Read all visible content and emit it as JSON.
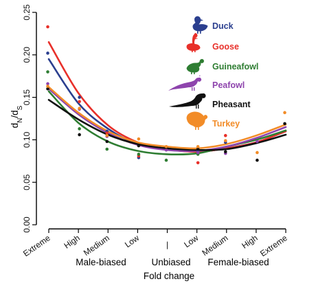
{
  "chart_data": {
    "type": "line",
    "xlabel": "Fold change",
    "ylabel": "dN/dS",
    "ylabel_parts": {
      "main1": "d",
      "sub1": "N",
      "slash": "/",
      "main2": "d",
      "sub2": "S"
    },
    "ylim": [
      0.0,
      0.25
    ],
    "yticks": [
      "0.00",
      "0.05",
      "0.10",
      "0.15",
      "0.20",
      "0.25"
    ],
    "yticks_values": [
      0.0,
      0.05,
      0.1,
      0.15,
      0.2,
      0.25
    ],
    "categories": [
      "Extreme",
      "High",
      "Medium",
      "Low",
      "|",
      "Low",
      "Medium",
      "High",
      "Extreme"
    ],
    "groups": [
      "Male-biased",
      "Unbiased",
      "Female-biased"
    ],
    "legend_position": "top-right",
    "series": [
      {
        "name": "Duck",
        "color": "#2b3f8f",
        "icon": "duck-icon",
        "points": [
          0.202,
          0.15,
          0.11,
          0.079,
          null,
          0.087,
          0.097,
          null,
          null
        ],
        "curve": [
          0.195,
          0.143,
          0.113,
          0.095,
          0.089,
          0.086,
          0.09,
          0.097,
          0.11
        ]
      },
      {
        "name": "Goose",
        "color": "#e8302a",
        "icon": "goose-icon",
        "points": [
          0.233,
          0.145,
          0.108,
          0.081,
          null,
          0.073,
          0.105,
          null,
          null
        ],
        "curve": [
          0.215,
          0.155,
          0.117,
          0.097,
          0.089,
          0.086,
          0.09,
          0.097,
          0.11
        ]
      },
      {
        "name": "Guineafowl",
        "color": "#2e7d32",
        "icon": "guineafowl-icon",
        "points": [
          0.18,
          0.113,
          0.089,
          0.083,
          0.076,
          0.083,
          null,
          null,
          null
        ],
        "curve": [
          0.157,
          0.12,
          0.098,
          0.087,
          0.083,
          0.084,
          0.092,
          0.1,
          0.111
        ]
      },
      {
        "name": "Peafowl",
        "color": "#8e44ad",
        "icon": "peafowl-icon",
        "points": [
          0.166,
          0.136,
          0.104,
          null,
          0.088,
          0.085,
          0.084,
          0.098,
          null
        ],
        "curve": [
          0.16,
          0.13,
          0.108,
          0.094,
          0.088,
          0.087,
          0.092,
          0.102,
          0.115
        ]
      },
      {
        "name": "Pheasant",
        "color": "#111111",
        "icon": "pheasant-icon",
        "points": [
          0.16,
          0.106,
          0.098,
          0.093,
          0.091,
          0.089,
          0.086,
          0.076,
          0.119
        ],
        "curve": [
          0.147,
          0.124,
          0.106,
          0.095,
          0.09,
          0.088,
          0.089,
          0.096,
          0.106
        ]
      },
      {
        "name": "Turkey",
        "color": "#f28c28",
        "icon": "turkey-icon",
        "points": [
          0.163,
          0.137,
          0.105,
          0.101,
          0.092,
          0.092,
          0.099,
          0.085,
          0.132
        ],
        "curve": [
          0.162,
          0.132,
          0.11,
          0.097,
          0.092,
          0.09,
          0.095,
          0.105,
          0.118
        ]
      }
    ]
  }
}
